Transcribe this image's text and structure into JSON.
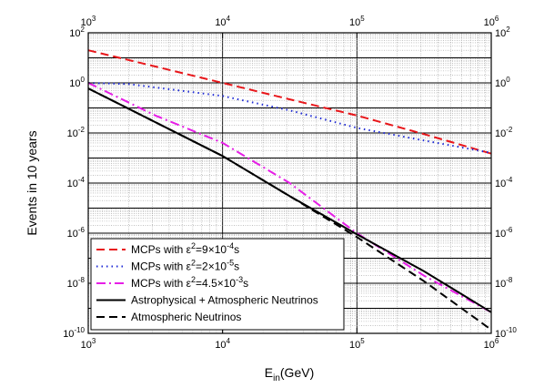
{
  "chart_data": {
    "type": "line",
    "title": "",
    "xlabel": {
      "main": "E",
      "sub": "in",
      "rest": "(GeV)"
    },
    "ylabel": "Events in 10 years",
    "x_scale": "log",
    "y_scale": "log",
    "xlim": [
      1000,
      1000000
    ],
    "ylim": [
      1e-10,
      100
    ],
    "x_ticks": [
      {
        "value": 1000,
        "base": "10",
        "exp": "3"
      },
      {
        "value": 10000,
        "base": "10",
        "exp": "4"
      },
      {
        "value": 100000,
        "base": "10",
        "exp": "5"
      },
      {
        "value": 1000000,
        "base": "10",
        "exp": "6"
      }
    ],
    "y_ticks": [
      {
        "value": 1e-10,
        "base": "10",
        "exp": "-10"
      },
      {
        "value": 1e-08,
        "base": "10",
        "exp": "-8"
      },
      {
        "value": 1e-06,
        "base": "10",
        "exp": "-6"
      },
      {
        "value": 0.0001,
        "base": "10",
        "exp": "-4"
      },
      {
        "value": 0.01,
        "base": "10",
        "exp": "-2"
      },
      {
        "value": 1,
        "base": "10",
        "exp": "0"
      },
      {
        "value": 100,
        "base": "10",
        "exp": "2"
      }
    ],
    "grid": true,
    "legend_position": "bottom-left",
    "series": [
      {
        "legend": {
          "pre": "MCPs with ε",
          "sup1": "2",
          "mid": "=9×10",
          "sup2": "-4",
          "post": "s"
        },
        "color": "#e8161a",
        "dash": "9,5",
        "width": 2,
        "x": [
          1000,
          3162,
          10000,
          31623,
          100000,
          316228,
          1000000
        ],
        "y": [
          20,
          4.5,
          1,
          0.22,
          0.05,
          0.009,
          0.0015
        ]
      },
      {
        "legend": {
          "pre": "MCPs with ε",
          "sup1": "2",
          "mid": "=2×10",
          "sup2": "-5",
          "post": "s"
        },
        "color": "#1f2bd6",
        "dash": "1.5,4",
        "width": 2,
        "x": [
          1000,
          2000,
          10000,
          31623,
          100000,
          316228,
          1000000
        ],
        "y": [
          1,
          0.9,
          0.3,
          0.08,
          0.016,
          0.005,
          0.0016
        ]
      },
      {
        "legend": {
          "pre": "MCPs with ε",
          "sup1": "2",
          "mid": "=4.5×10",
          "sup2": "-3",
          "post": "s"
        },
        "color": "#e61ee6",
        "dash": "10,4,2,4",
        "width": 2,
        "x": [
          1000,
          3162,
          10000,
          31623,
          100000,
          316228,
          1000000
        ],
        "y": [
          1,
          0.05,
          0.004,
          0.0001,
          1e-06,
          2e-08,
          7e-10
        ]
      },
      {
        "legend": {
          "pre": "Astrophysical + Atmospheric Neutrinos",
          "sup1": "",
          "mid": "",
          "sup2": "",
          "post": ""
        },
        "color": "#000000",
        "dash": "",
        "width": 2,
        "x": [
          1000,
          10000,
          31623,
          100000,
          316228,
          1000000
        ],
        "y": [
          0.6,
          0.0012,
          3e-05,
          9e-07,
          3e-08,
          7e-10
        ]
      },
      {
        "legend": {
          "pre": "Atmospheric Neutrinos",
          "sup1": "",
          "mid": "",
          "sup2": "",
          "post": ""
        },
        "color": "#000000",
        "dash": "9,5",
        "width": 2,
        "x": [
          1000,
          10000,
          31623,
          100000,
          316228,
          1000000
        ],
        "y": [
          0.6,
          0.0012,
          3e-05,
          7e-07,
          1.2e-08,
          1.4e-10
        ]
      }
    ]
  }
}
